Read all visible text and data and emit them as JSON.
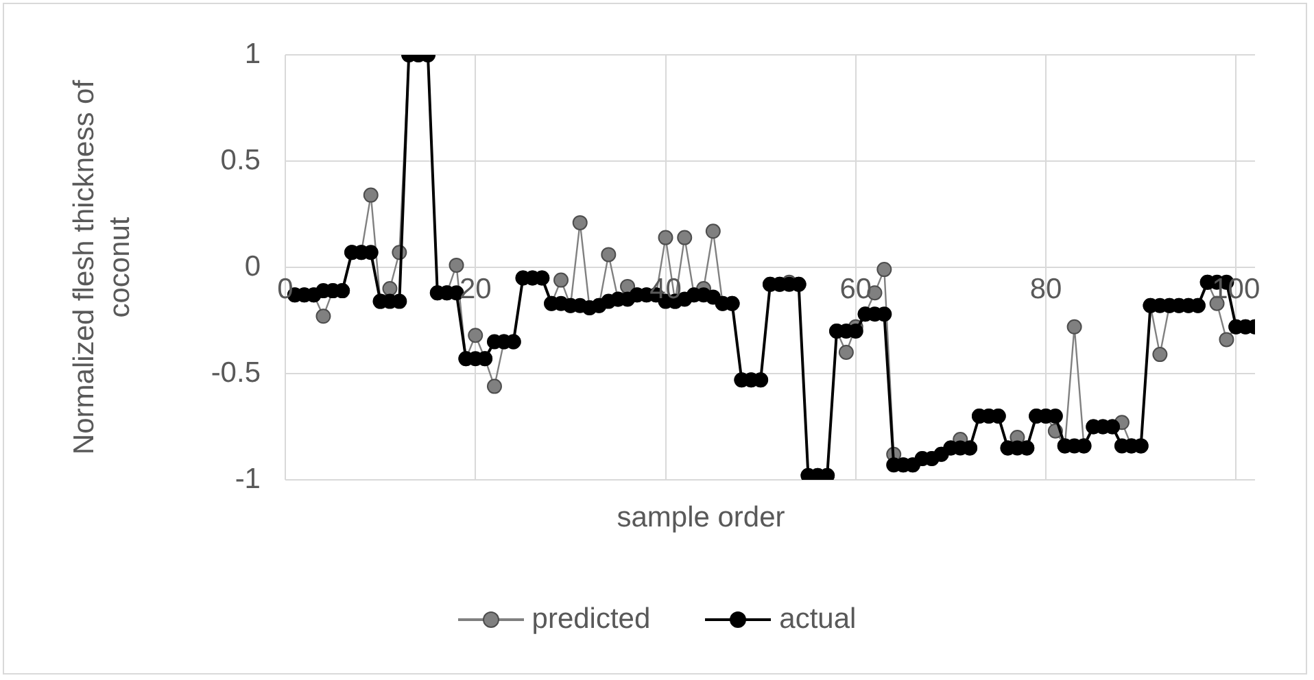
{
  "chart_data": {
    "type": "line",
    "xlabel": "sample order",
    "ylabel": "Normalized flesh thickness of coconut",
    "x": [
      1,
      2,
      3,
      4,
      5,
      6,
      7,
      8,
      9,
      10,
      11,
      12,
      13,
      14,
      15,
      16,
      17,
      18,
      19,
      20,
      21,
      22,
      23,
      24,
      25,
      26,
      27,
      28,
      29,
      30,
      31,
      32,
      33,
      34,
      35,
      36,
      37,
      38,
      39,
      40,
      41,
      42,
      43,
      44,
      45,
      46,
      47,
      48,
      49,
      50,
      51,
      52,
      53,
      54,
      55,
      56,
      57,
      58,
      59,
      60,
      61,
      62,
      63,
      64,
      65,
      66,
      67,
      68,
      69,
      70,
      71,
      72,
      73,
      74,
      75,
      76,
      77,
      78,
      79,
      80,
      81,
      82,
      83,
      84,
      85,
      86,
      87,
      88,
      89,
      90,
      91,
      92,
      93,
      94,
      95,
      96,
      97,
      98,
      99,
      100,
      101,
      102
    ],
    "series": [
      {
        "name": "predicted",
        "color": "#808080",
        "values": [
          -0.13,
          -0.13,
          -0.13,
          -0.23,
          -0.11,
          -0.11,
          0.07,
          0.07,
          0.34,
          -0.16,
          -0.1,
          0.07,
          1,
          1,
          1,
          -0.12,
          -0.12,
          0.01,
          -0.43,
          -0.32,
          -0.43,
          -0.56,
          -0.35,
          -0.35,
          -0.05,
          -0.05,
          -0.05,
          -0.17,
          -0.06,
          -0.18,
          0.21,
          -0.19,
          -0.18,
          0.06,
          -0.15,
          -0.09,
          -0.13,
          -0.13,
          -0.13,
          0.14,
          -0.16,
          0.14,
          -0.13,
          -0.1,
          0.17,
          -0.17,
          -0.17,
          -0.53,
          -0.53,
          -0.53,
          -0.08,
          -0.08,
          -0.07,
          -0.08,
          -0.98,
          -0.98,
          -0.98,
          -0.3,
          -0.4,
          -0.28,
          -0.22,
          -0.12,
          -0.01,
          -0.88,
          -0.93,
          -0.93,
          -0.9,
          -0.9,
          -0.88,
          -0.85,
          -0.81,
          -0.85,
          -0.7,
          -0.7,
          -0.7,
          -0.85,
          -0.8,
          -0.85,
          -0.7,
          -0.7,
          -0.77,
          -0.84,
          -0.28,
          -0.84,
          -0.75,
          -0.75,
          -0.75,
          -0.73,
          -0.84,
          -0.84,
          -0.18,
          -0.41,
          -0.18,
          -0.18,
          -0.18,
          -0.18,
          -0.07,
          -0.17,
          -0.34,
          -0.28,
          -0.28,
          -0.28
        ]
      },
      {
        "name": "actual",
        "color": "#000000",
        "values": [
          -0.13,
          -0.13,
          -0.13,
          -0.11,
          -0.11,
          -0.11,
          0.07,
          0.07,
          0.07,
          -0.16,
          -0.16,
          -0.16,
          1,
          1,
          1,
          -0.12,
          -0.12,
          -0.12,
          -0.43,
          -0.43,
          -0.43,
          -0.35,
          -0.35,
          -0.35,
          -0.05,
          -0.05,
          -0.05,
          -0.17,
          -0.17,
          -0.18,
          -0.18,
          -0.19,
          -0.18,
          -0.16,
          -0.15,
          -0.15,
          -0.13,
          -0.13,
          -0.13,
          -0.16,
          -0.16,
          -0.15,
          -0.13,
          -0.13,
          -0.14,
          -0.17,
          -0.17,
          -0.53,
          -0.53,
          -0.53,
          -0.08,
          -0.08,
          -0.08,
          -0.08,
          -0.98,
          -0.98,
          -0.98,
          -0.3,
          -0.3,
          -0.3,
          -0.22,
          -0.22,
          -0.22,
          -0.93,
          -0.93,
          -0.93,
          -0.9,
          -0.9,
          -0.88,
          -0.85,
          -0.85,
          -0.85,
          -0.7,
          -0.7,
          -0.7,
          -0.85,
          -0.85,
          -0.85,
          -0.7,
          -0.7,
          -0.7,
          -0.84,
          -0.84,
          -0.84,
          -0.75,
          -0.75,
          -0.75,
          -0.84,
          -0.84,
          -0.84,
          -0.18,
          -0.18,
          -0.18,
          -0.18,
          -0.18,
          -0.18,
          -0.07,
          -0.07,
          -0.07,
          -0.28,
          -0.28,
          -0.28
        ]
      }
    ],
    "xlim": [
      0,
      102
    ],
    "xticks": [
      0,
      20,
      40,
      60,
      80,
      100
    ],
    "ylim": [
      -1,
      1
    ],
    "yticks": [
      -1,
      -0.5,
      0,
      0.5,
      1
    ],
    "grid": true,
    "legend": "bottom",
    "marker": "circle",
    "line_style": "solid"
  }
}
